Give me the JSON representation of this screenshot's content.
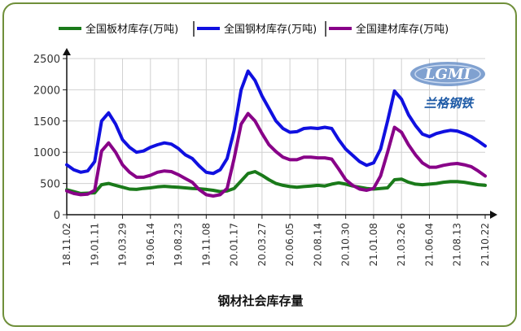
{
  "chart_data": {
    "type": "line",
    "title": "钢材社会库存量",
    "ylim": [
      0,
      2500
    ],
    "yticks": [
      "0",
      "500",
      "1000",
      "1500",
      "2000",
      "2500"
    ],
    "xtick_labels": [
      "18.11.02",
      "19.01.11",
      "19.03.29",
      "19.06.14",
      "19.08.23",
      "19.11.08",
      "20.01.17",
      "20.03.27",
      "20.06.05",
      "20.08.14",
      "20.10.30",
      "21.01.08",
      "21.03.26",
      "21.06.04",
      "21.08.13",
      "21.10.22"
    ],
    "grid": true,
    "legend_position": "top",
    "series": [
      {
        "name": "全国板材库存(万吨)",
        "color": "#1a7a1a",
        "values": [
          400,
          370,
          340,
          345,
          350,
          480,
          500,
          470,
          440,
          410,
          405,
          420,
          430,
          445,
          455,
          445,
          440,
          430,
          420,
          415,
          405,
          390,
          370,
          380,
          420,
          540,
          660,
          690,
          630,
          560,
          500,
          470,
          450,
          440,
          450,
          460,
          470,
          460,
          490,
          510,
          490,
          460,
          440,
          420,
          410,
          420,
          430,
          560,
          570,
          520,
          490,
          480,
          490,
          500,
          520,
          530,
          530,
          520,
          500,
          480,
          470
        ]
      },
      {
        "name": "全国钢材库存(万吨)",
        "color": "#1010e0",
        "values": [
          800,
          720,
          680,
          700,
          850,
          1500,
          1630,
          1450,
          1200,
          1080,
          1000,
          1020,
          1080,
          1120,
          1150,
          1130,
          1060,
          960,
          900,
          780,
          680,
          660,
          720,
          900,
          1350,
          2000,
          2300,
          2150,
          1900,
          1700,
          1500,
          1380,
          1320,
          1330,
          1380,
          1390,
          1380,
          1400,
          1380,
          1200,
          1050,
          950,
          850,
          790,
          830,
          1050,
          1500,
          1980,
          1850,
          1600,
          1430,
          1290,
          1250,
          1300,
          1330,
          1350,
          1340,
          1300,
          1250,
          1180,
          1100
        ]
      },
      {
        "name": "全国建材库存(万吨)",
        "color": "#880088",
        "values": [
          380,
          340,
          320,
          330,
          390,
          1020,
          1150,
          1000,
          800,
          680,
          600,
          600,
          630,
          680,
          700,
          690,
          640,
          580,
          520,
          400,
          320,
          300,
          320,
          420,
          900,
          1450,
          1620,
          1500,
          1300,
          1120,
          1010,
          920,
          880,
          880,
          920,
          920,
          910,
          910,
          890,
          730,
          560,
          470,
          410,
          390,
          420,
          620,
          1000,
          1400,
          1320,
          1120,
          960,
          830,
          760,
          760,
          790,
          810,
          820,
          800,
          770,
          700,
          620
        ]
      }
    ]
  },
  "logo": {
    "abbrev": "LGMI",
    "name": "兰格钢铁"
  }
}
